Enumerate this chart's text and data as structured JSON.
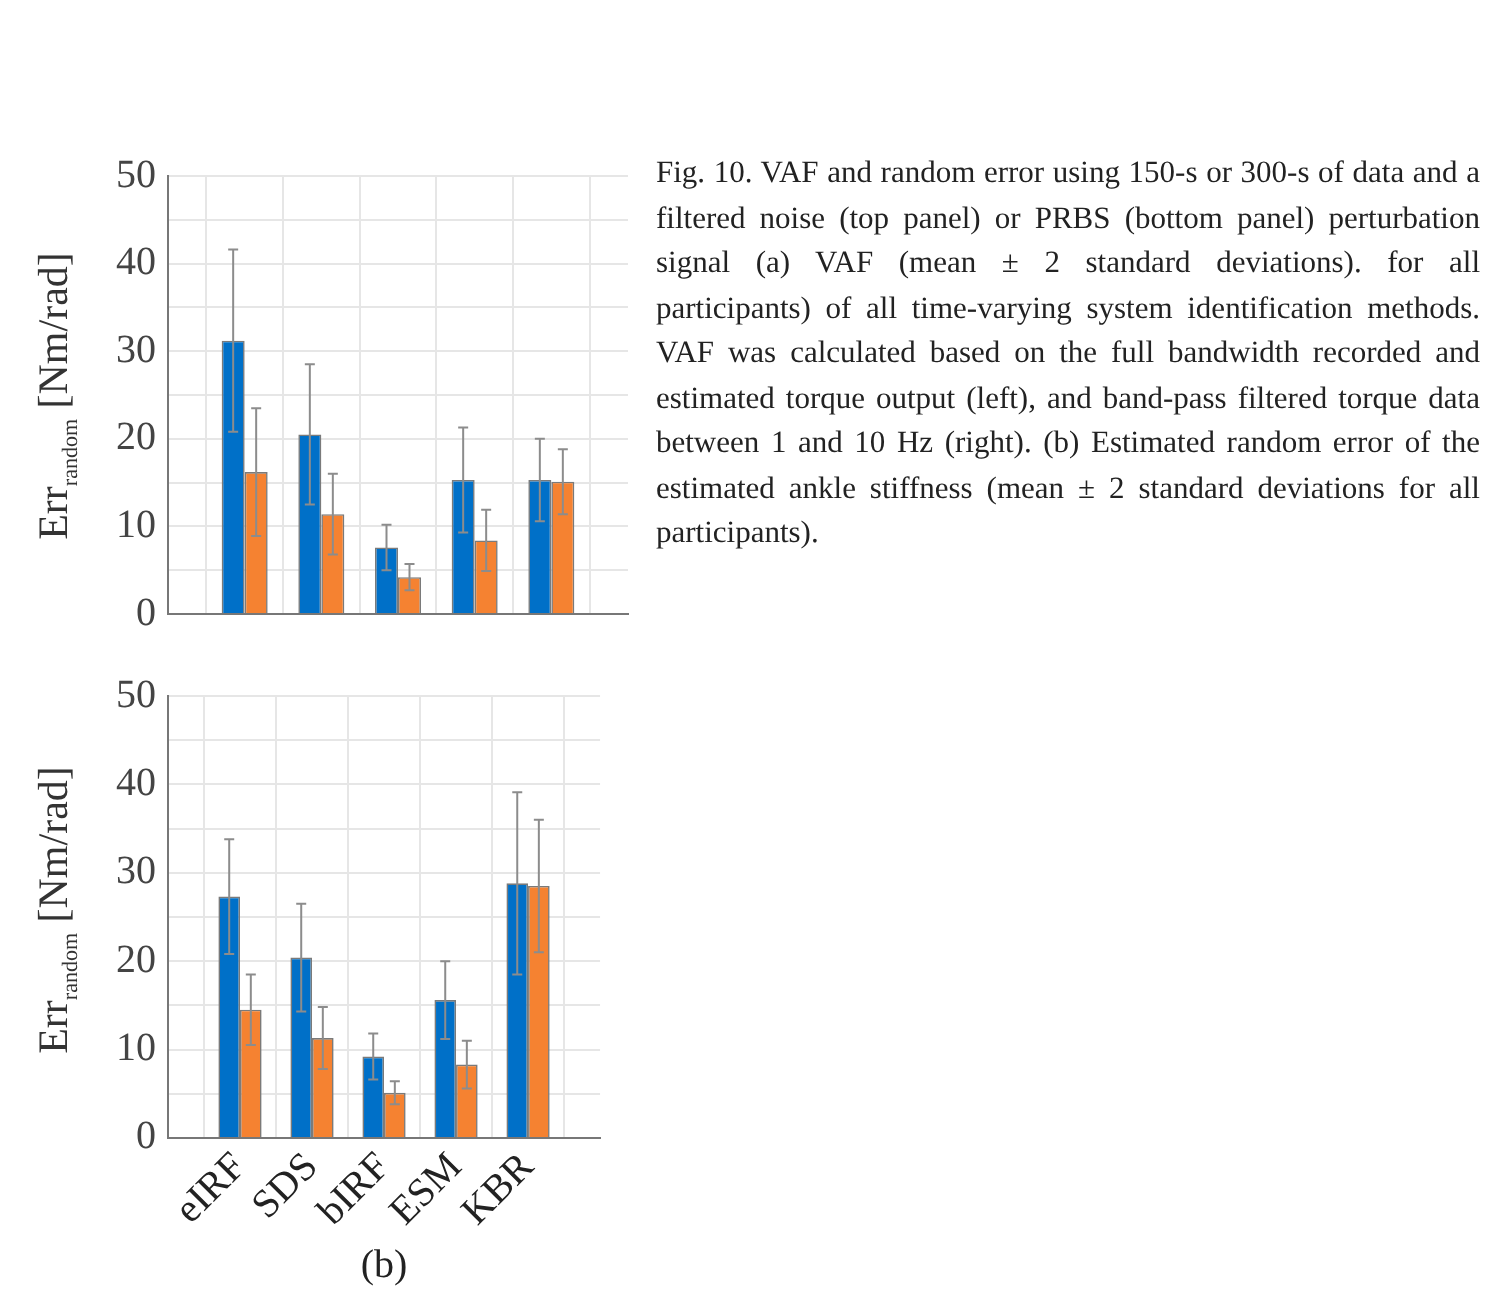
{
  "chart_data": [
    {
      "type": "bar",
      "ylabel": "Err$_{random}$ [Nm/rad]",
      "categories": [
        null,
        null,
        null,
        null,
        null
      ],
      "series": [
        {
          "color": "#0070c8",
          "values": [
            31.2,
            20.5,
            7.6,
            15.3,
            15.3
          ],
          "errors": [
            10.4,
            8,
            2.6,
            6,
            4.7
          ]
        },
        {
          "color": "#f58231",
          "values": [
            16.2,
            11.4,
            4.2,
            8.4,
            15.1
          ],
          "errors": [
            7.3,
            4.6,
            1.5,
            3.5,
            3.7
          ]
        }
      ],
      "ylim": [
        0,
        50
      ],
      "yticks": [
        0,
        {
          "value": 5,
          "label": null
        },
        10,
        {
          "value": 15,
          "label": null
        },
        20,
        {
          "value": 25,
          "label": null
        },
        30,
        {
          "value": 35,
          "label": null
        },
        40,
        {
          "value": 45,
          "label": null
        },
        50
      ],
      "grid": true,
      "tick_labels": "y",
      "annotations": [
        "Fig. 10. VAF and random error using 150-s or 300-s of data and a filtered noise (top panel) or PRBS (bottom panel) perturbation signal (a) VAF (mean ± 2 standard deviations). for all participants) of all time-varying system identification methods. VAF was calculated based on the full bandwidth recorded and estimated torque output (left), and band-pass filtered torque data between 1 and 10 Hz (right). (b) Estimated random error of the estimated ankle stiffness (mean ± 2 standard deviations for all participants)."
      ]
    },
    {
      "type": "bar",
      "ylabel": "Err$_{random}$ [Nm/rad]",
      "xlabel": "(b)",
      "categories": [
        "eIRF",
        "SDS",
        "bIRF",
        "ESM",
        "KBR"
      ],
      "series": [
        {
          "color": "#0070c8",
          "values": [
            27.3,
            20.4,
            9.2,
            15.6,
            28.8
          ],
          "errors": [
            6.5,
            6.1,
            2.6,
            4.4,
            10.3
          ]
        },
        {
          "color": "#f58231",
          "values": [
            14.5,
            11.3,
            5.1,
            8.3,
            28.5
          ],
          "errors": [
            4,
            3.5,
            1.3,
            2.7,
            7.5
          ]
        }
      ],
      "ylim": [
        0,
        50
      ],
      "yticks": [
        0,
        {
          "value": 5,
          "label": null
        },
        10,
        {
          "value": 15,
          "label": null
        },
        20,
        {
          "value": 25,
          "label": null
        },
        30,
        {
          "value": 35,
          "label": null
        },
        40,
        {
          "value": 45,
          "label": null
        },
        50
      ],
      "grid": true
    }
  ]
}
